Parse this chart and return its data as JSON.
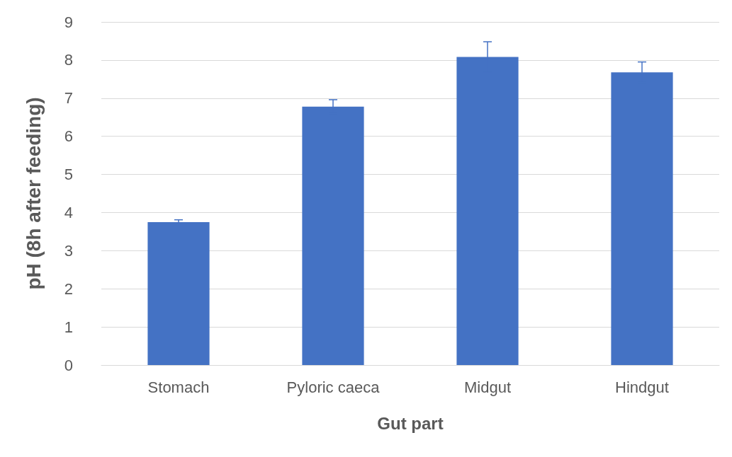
{
  "chart_data": {
    "type": "bar",
    "xlabel": "Gut part",
    "ylabel": "pH (8h after feeding)",
    "categories": [
      "Stomach",
      "Pyloric caeca",
      "Midgut",
      "Hindgut"
    ],
    "values": [
      3.75,
      6.78,
      8.08,
      7.68
    ],
    "errors": [
      0.06,
      0.18,
      0.4,
      0.27
    ],
    "color": "#4472c4",
    "ylim": [
      0,
      9
    ],
    "yticks": [
      0,
      1,
      2,
      3,
      4,
      5,
      6,
      7,
      8,
      9
    ],
    "grid": "y"
  }
}
